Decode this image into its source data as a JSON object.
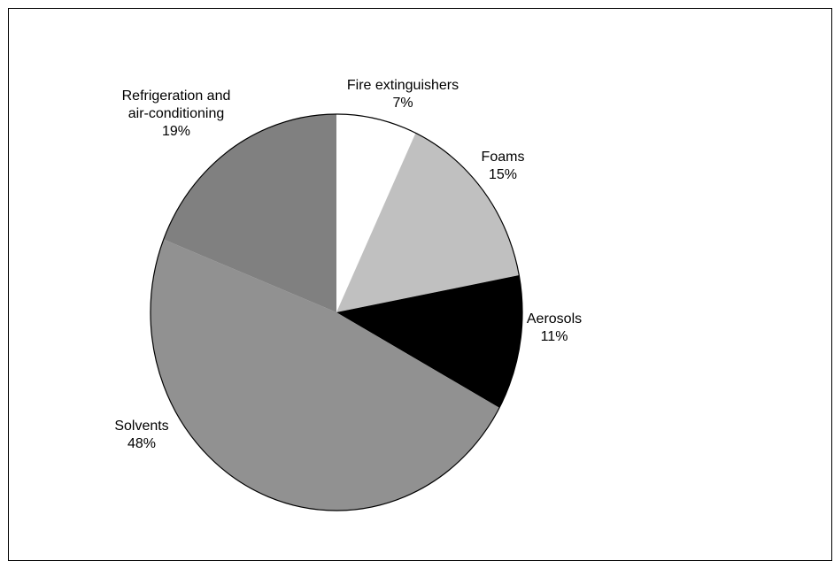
{
  "chart_data": {
    "type": "pie",
    "title": "",
    "slices": [
      {
        "label": "Fire extinguishers",
        "lines": [
          "Fire extinguishers"
        ],
        "value": 7,
        "value_label": "7%",
        "color": "#ffffff"
      },
      {
        "label": "Foams",
        "lines": [
          "Foams"
        ],
        "value": 15,
        "value_label": "15%",
        "color": "#c0c0c0"
      },
      {
        "label": "Aerosols",
        "lines": [
          "Aerosols"
        ],
        "value": 11,
        "value_label": "11%",
        "color": "#000000"
      },
      {
        "label": "Solvents",
        "lines": [
          "Solvents"
        ],
        "value": 48,
        "value_label": "48%",
        "color": "#919191"
      },
      {
        "label": "Refrigeration and air-conditioning",
        "lines": [
          "Refrigeration and",
          "air-conditioning"
        ],
        "value": 19,
        "value_label": "19%",
        "color": "#808080"
      }
    ],
    "start": "12 o'clock",
    "direction": "clockwise",
    "legend": "none",
    "label_placement": "outside"
  }
}
